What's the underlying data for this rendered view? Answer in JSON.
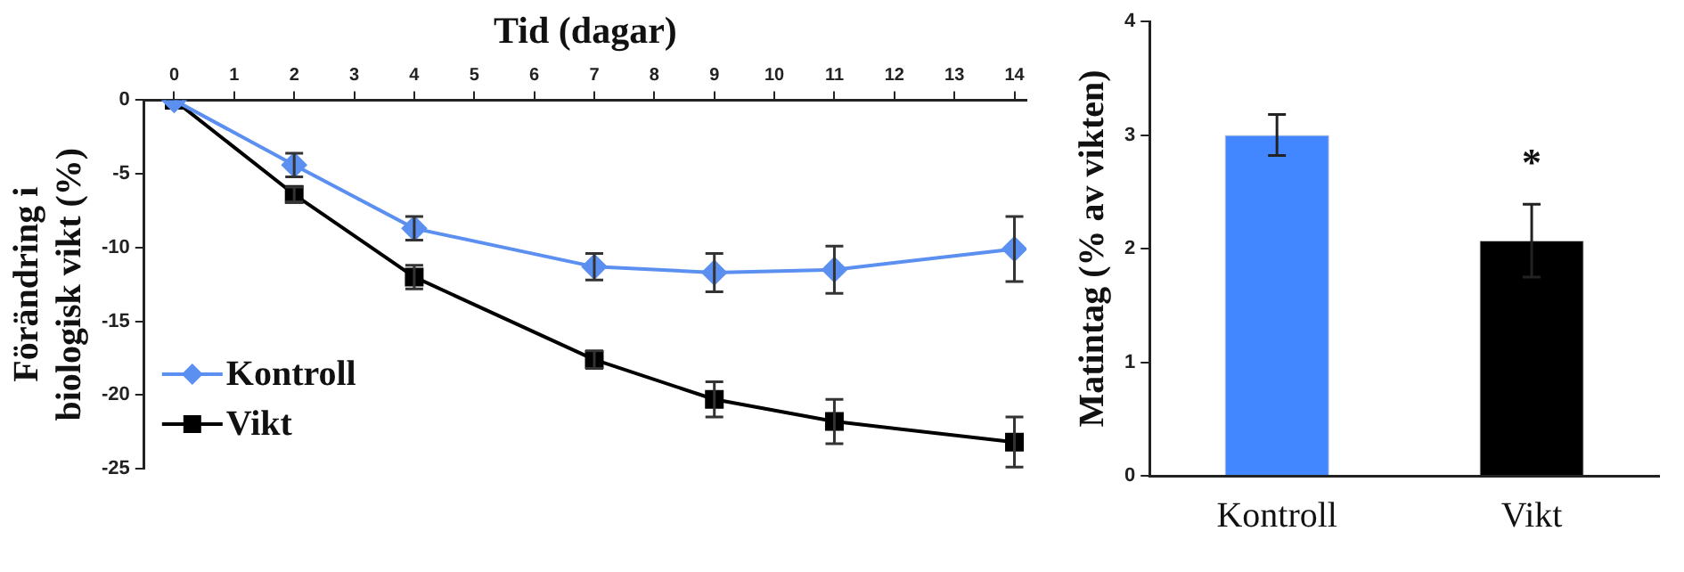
{
  "chart_data": [
    {
      "type": "line",
      "xlabel": "Tid (dagar)",
      "ylabel": "Förändring i biologisk vikt (%)",
      "x": [
        0,
        2,
        4,
        7,
        9,
        11,
        14
      ],
      "series": [
        {
          "name": "Kontroll",
          "color": "#5b8ff0",
          "marker": "diamond",
          "values": [
            0,
            -4.4,
            -8.7,
            -11.3,
            -11.7,
            -11.5,
            -10.1
          ],
          "errors": [
            null,
            0.8,
            0.8,
            0.9,
            1.3,
            1.6,
            2.2
          ]
        },
        {
          "name": "Vikt",
          "color": "#000000",
          "marker": "square",
          "values": [
            0,
            -6.4,
            -12.0,
            -17.6,
            -20.3,
            -21.8,
            -23.2
          ],
          "errors": [
            null,
            0.5,
            0.8,
            0.6,
            1.2,
            1.5,
            1.7
          ]
        }
      ],
      "xlim": [
        -0.5,
        14.2
      ],
      "xticks": [
        0,
        1,
        2,
        3,
        4,
        5,
        6,
        7,
        8,
        9,
        10,
        11,
        12,
        13,
        14
      ],
      "ylim": [
        -25,
        0
      ],
      "yticks": [
        -25,
        -20,
        -15,
        -10,
        -5,
        0
      ],
      "grid": false,
      "legend": "bottom left",
      "line_style": "solid"
    },
    {
      "type": "bar",
      "ylabel": "Matintag (% av vikten)",
      "categories": [
        "Kontroll",
        "Vikt"
      ],
      "values": [
        3.0,
        2.07
      ],
      "colors": [
        "#4287ff",
        "#000000"
      ],
      "errors": [
        0.18,
        0.32
      ],
      "ylim": [
        0,
        4
      ],
      "yticks": [
        0,
        1,
        2,
        3,
        4
      ],
      "grid": false,
      "legend": false,
      "annotations": [
        "*"
      ]
    }
  ]
}
